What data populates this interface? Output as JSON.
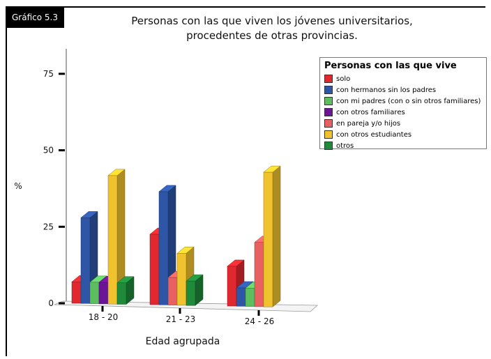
{
  "badge": "Gráfico 5.3",
  "title_lines": [
    "Personas con las que viven los jóvenes universitarios,",
    "procedentes de otras provincias."
  ],
  "chart_data": {
    "type": "bar",
    "title": "Personas con las que viven los jóvenes universitarios, procedentes de otras provincias.",
    "xlabel": "Edad agrupada",
    "ylabel": "%",
    "ylim": [
      0,
      85
    ],
    "yticks": [
      0,
      25,
      50,
      75
    ],
    "categories": [
      "18 - 20",
      "21 - 23",
      "24 - 26"
    ],
    "legend_title": "Personas con las que vive",
    "legend_position": "top-right",
    "series": [
      {
        "name": "solo",
        "color": "#e0282e",
        "values": [
          7,
          23,
          13
        ]
      },
      {
        "name": "con hermanos sin los padres",
        "color": "#2f56a6",
        "values": [
          28,
          37,
          6
        ]
      },
      {
        "name": "con mi padres (con o sin otros familiares)",
        "color": "#5cbe5e",
        "values": [
          7,
          0,
          6
        ]
      },
      {
        "name": "con otros familiares",
        "color": "#6a1596",
        "values": [
          7,
          0,
          0
        ]
      },
      {
        "name": "en pareja y/o hijos",
        "color": "#e86060",
        "values": [
          0,
          9,
          21
        ]
      },
      {
        "name": "con otros estudiantes",
        "color": "#f0c22e",
        "values": [
          42,
          17,
          44
        ]
      },
      {
        "name": "otros",
        "color": "#1f8a3a",
        "values": [
          7,
          8,
          0
        ]
      }
    ]
  }
}
